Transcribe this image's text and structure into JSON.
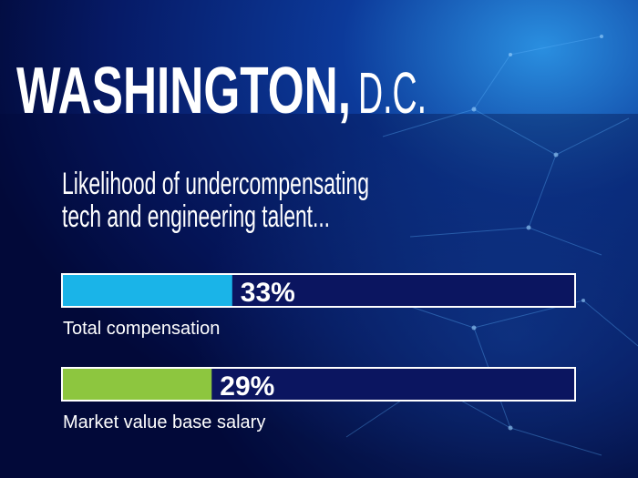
{
  "chart_data": {
    "type": "bar",
    "orientation": "horizontal",
    "title": [
      "WASHINGTON,",
      "D.C."
    ],
    "subtitle": [
      "Likelihood of undercompensating",
      "tech and engineering talent..."
    ],
    "categories": [
      "Total compensation",
      "Market value base salary"
    ],
    "values": [
      33,
      29
    ],
    "value_labels": [
      "33%",
      "29%"
    ],
    "colors": [
      "#1ab4e8",
      "#8dc63f"
    ],
    "xlim": [
      0,
      100
    ]
  }
}
